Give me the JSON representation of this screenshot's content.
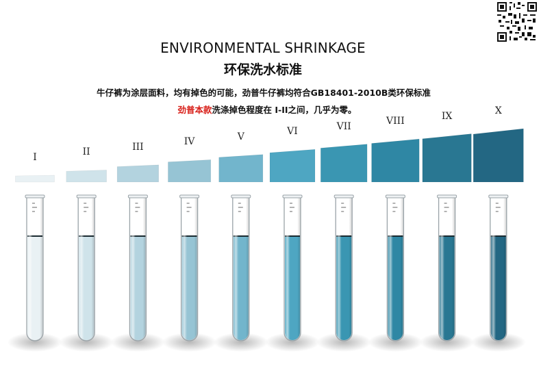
{
  "title_en": "ENVIRONMENTAL SHRINKAGE",
  "title_cn": "环保洗水标准",
  "desc_line1": "牛仔裤为涂层面料，均有掉色的可能，劲普牛仔裤均符合GB18401-2010B类环保标准",
  "desc_line2_highlight": "劲普本款",
  "desc_line2_rest": "洗涤掉色程度在 I-II之间，几乎为零。",
  "qr_icon": "qr-code-icon",
  "grades": [
    {
      "label": "I",
      "color": "#e9f1f4",
      "level": 1
    },
    {
      "label": "II",
      "color": "#cfe3ea",
      "level": 2
    },
    {
      "label": "III",
      "color": "#b3d3df",
      "level": 3
    },
    {
      "label": "IV",
      "color": "#96c4d4",
      "level": 4
    },
    {
      "label": "V",
      "color": "#72b5cc",
      "level": 5
    },
    {
      "label": "VI",
      "color": "#4ea6c2",
      "level": 6
    },
    {
      "label": "VII",
      "color": "#3a96b2",
      "level": 7
    },
    {
      "label": "VIII",
      "color": "#2f87a4",
      "level": 8
    },
    {
      "label": "IX",
      "color": "#297792",
      "level": 9
    },
    {
      "label": "X",
      "color": "#236783",
      "level": 10
    }
  ]
}
